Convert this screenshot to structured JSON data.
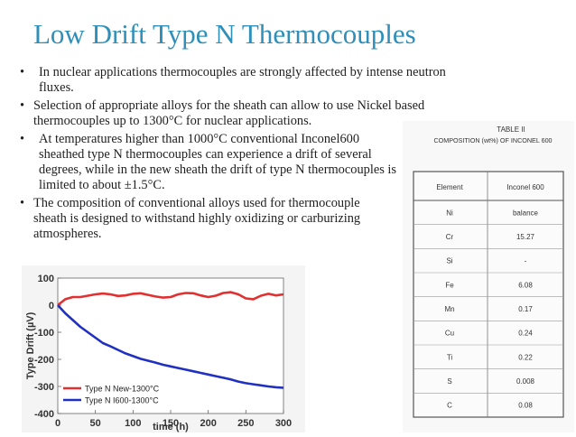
{
  "slide": {
    "title": "Low Drift Type N Thermocouples",
    "bullets": [
      "In nuclear applications thermocouples are strongly affected by intense neutron fluxes.",
      "Selection of appropriate alloys for the sheath can allow to use Nickel based thermocouples up to 1300°C for nuclear applications.",
      "At temperatures higher than 1000°C conventional Inconel600 sheathed type N thermocouples can experience a drift of several degrees, while in the new sheath the drift of type N thermocouples is limited to about ±1.5°C.",
      "The composition of conventional alloys used for thermocouple sheath is designed to withstand highly oxidizing or carburizing atmospheres."
    ]
  },
  "table": {
    "caption1": "TABLE II",
    "caption2": "COMPOSITION (wt%) OF INCONEL 600",
    "headers": [
      "Element",
      "Inconel 600"
    ],
    "rows": [
      [
        "Ni",
        "balance"
      ],
      [
        "Cr",
        "15.27"
      ],
      [
        "Si",
        "-"
      ],
      [
        "Fe",
        "6.08"
      ],
      [
        "Mn",
        "0.17"
      ],
      [
        "Cu",
        "0.24"
      ],
      [
        "Ti",
        "0.22"
      ],
      [
        "S",
        "0.008"
      ],
      [
        "C",
        "0.08"
      ]
    ]
  },
  "chart_data": {
    "type": "line",
    "xlabel": "time (h)",
    "ylabel": "Type Drift (µV)",
    "xlim": [
      0,
      300
    ],
    "ylim": [
      -400,
      100
    ],
    "xticks": [
      "0",
      "50",
      "100",
      "150",
      "200",
      "250",
      "300"
    ],
    "yticks": [
      "100",
      "0",
      "-100",
      "-200",
      "-300",
      "-400"
    ],
    "legend_position": "bottom-left",
    "series": [
      {
        "name": "Type N New-1300°C",
        "color": "#e03030",
        "x": [
          0,
          10,
          20,
          30,
          40,
          50,
          60,
          70,
          80,
          90,
          100,
          110,
          120,
          130,
          140,
          150,
          160,
          170,
          180,
          190,
          200,
          210,
          220,
          230,
          240,
          250,
          260,
          270,
          280,
          290,
          300
        ],
        "y": [
          0,
          22,
          30,
          30,
          35,
          40,
          43,
          40,
          34,
          36,
          42,
          44,
          38,
          32,
          28,
          30,
          40,
          45,
          44,
          36,
          30,
          35,
          45,
          48,
          40,
          25,
          22,
          35,
          42,
          36,
          40
        ]
      },
      {
        "name": "Type N I600-1300°C",
        "color": "#2030c0",
        "x": [
          0,
          10,
          20,
          30,
          40,
          50,
          60,
          70,
          80,
          90,
          100,
          110,
          120,
          130,
          140,
          150,
          160,
          170,
          180,
          190,
          200,
          210,
          220,
          230,
          240,
          250,
          260,
          270,
          280,
          290,
          300
        ],
        "y": [
          0,
          -30,
          -55,
          -80,
          -100,
          -120,
          -140,
          -152,
          -165,
          -178,
          -188,
          -198,
          -205,
          -212,
          -220,
          -226,
          -232,
          -238,
          -244,
          -250,
          -256,
          -262,
          -268,
          -274,
          -282,
          -288,
          -292,
          -296,
          -300,
          -303,
          -305
        ]
      }
    ]
  }
}
